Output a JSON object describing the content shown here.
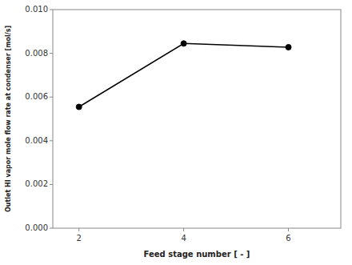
{
  "chart_data": {
    "type": "line",
    "x": [
      2,
      4,
      6
    ],
    "values": [
      0.00555,
      0.00845,
      0.00828
    ],
    "xlabel": "Feed stage number [ - ]",
    "ylabel": "Outlet HI vapor mole flow rate at condenser [mol/s]",
    "xlim": [
      1.5,
      7.0
    ],
    "ylim": [
      0.0,
      0.01
    ],
    "xticks": [
      2,
      4,
      6
    ],
    "yticks": [
      {
        "value": 0.0,
        "label": "0.000"
      },
      0.002,
      0.004,
      0.006,
      0.008,
      {
        "value": 0.01,
        "label": "0.010"
      }
    ],
    "color": "#000000",
    "marker": "circle",
    "line_style": "solid",
    "grid": false
  }
}
